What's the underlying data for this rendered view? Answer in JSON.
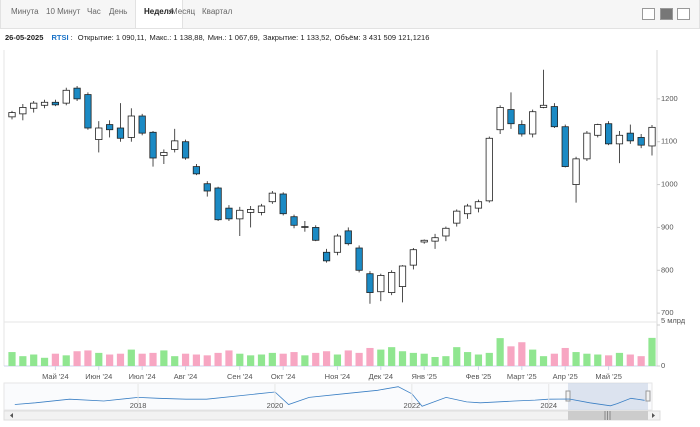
{
  "tabs": [
    "Минута",
    "10 Минут",
    "Час",
    "День",
    "Неделя",
    "Месяц",
    "Квартал"
  ],
  "active_tab": 4,
  "info": {
    "date": "26-05-2025",
    "ticker": "RTSI",
    "separator": ":",
    "fields": [
      "Открытие: 1 090,11,",
      "Макс.: 1 138,88,",
      "Мин.: 1 067,69,",
      "Закрытие: 1 133,52,",
      "Объём: 3 431 509 121,1216"
    ]
  },
  "chart_data": {
    "type": "candlestick",
    "categories": [
      null,
      null,
      null,
      null,
      "Май '24",
      null,
      null,
      null,
      "Июн '24",
      null,
      null,
      null,
      "Июл '24",
      null,
      null,
      null,
      "Авг '24",
      null,
      null,
      null,
      null,
      "Сен '24",
      null,
      null,
      null,
      "Окт '24",
      null,
      null,
      null,
      null,
      "Ноя '24",
      null,
      null,
      null,
      "Дек '24",
      null,
      null,
      null,
      "Янв '25",
      null,
      null,
      null,
      null,
      "Фев '25",
      null,
      null,
      null,
      "Март '25",
      null,
      null,
      null,
      "Апр '25",
      null,
      null,
      null,
      "Май '25",
      null,
      null,
      null,
      null
    ],
    "open": [
      1158,
      1165,
      1178,
      1185,
      1192,
      1190,
      1225,
      1210,
      1105,
      1140,
      1132,
      1110,
      1160,
      1122,
      1068,
      1082,
      1100,
      1042,
      1002,
      992,
      945,
      920,
      935,
      935,
      960,
      978,
      925,
      900,
      900,
      842,
      842,
      892,
      852,
      792,
      750,
      748,
      762,
      812,
      866,
      868,
      880,
      910,
      932,
      945,
      962,
      1128,
      1175,
      1140,
      1118,
      1180,
      1182,
      1135,
      1000,
      1060,
      1115,
      1142,
      1095,
      1120,
      1110,
      1090.11
    ],
    "high": [
      1172,
      1188,
      1195,
      1198,
      1198,
      1226,
      1230,
      1215,
      1148,
      1150,
      1190,
      1178,
      1165,
      1125,
      1082,
      1130,
      1105,
      1048,
      1008,
      995,
      952,
      948,
      950,
      955,
      985,
      982,
      930,
      915,
      905,
      850,
      885,
      900,
      858,
      798,
      792,
      800,
      812,
      852,
      872,
      885,
      902,
      942,
      955,
      965,
      1112,
      1185,
      1215,
      1150,
      1175,
      1268,
      1190,
      1140,
      1065,
      1125,
      1142,
      1148,
      1125,
      1140,
      1118,
      1138.88
    ],
    "low": [
      1152,
      1150,
      1168,
      1178,
      1183,
      1185,
      1195,
      1128,
      1075,
      1110,
      1100,
      1100,
      1115,
      1042,
      1048,
      1075,
      1058,
      1022,
      972,
      915,
      915,
      880,
      900,
      928,
      955,
      928,
      898,
      890,
      868,
      818,
      835,
      858,
      795,
      722,
      728,
      742,
      725,
      802,
      862,
      850,
      868,
      902,
      920,
      935,
      958,
      1118,
      1130,
      1112,
      1110,
      1178,
      1132,
      1040,
      958,
      1055,
      1110,
      1092,
      1050,
      1095,
      1085,
      1067.69
    ],
    "close": [
      1168,
      1180,
      1190,
      1192,
      1186,
      1220,
      1200,
      1132,
      1132,
      1128,
      1108,
      1160,
      1120,
      1062,
      1075,
      1102,
      1062,
      1025,
      985,
      918,
      920,
      940,
      942,
      950,
      980,
      932,
      905,
      902,
      870,
      822,
      880,
      862,
      800,
      748,
      788,
      795,
      810,
      848,
      870,
      876,
      898,
      938,
      950,
      960,
      1108,
      1180,
      1142,
      1118,
      1170,
      1185,
      1135,
      1042,
      1060,
      1120,
      1140,
      1095,
      1115,
      1102,
      1092,
      1133.52
    ],
    "volume": [
      1.7,
      1.2,
      1.4,
      1.0,
      1.5,
      1.3,
      1.8,
      1.9,
      1.6,
      1.4,
      1.5,
      2.0,
      1.5,
      1.6,
      1.9,
      1.2,
      1.5,
      1.4,
      1.3,
      1.6,
      1.9,
      1.5,
      1.3,
      1.4,
      1.6,
      1.5,
      1.7,
      1.3,
      1.6,
      1.8,
      1.4,
      1.9,
      1.6,
      2.2,
      2.0,
      2.3,
      1.8,
      1.6,
      1.5,
      1.1,
      1.2,
      2.3,
      1.7,
      1.4,
      1.6,
      3.4,
      2.4,
      2.9,
      2.0,
      1.2,
      1.5,
      2.2,
      1.7,
      1.5,
      1.4,
      1.3,
      1.6,
      1.4,
      1.2,
      3.43
    ],
    "up_color": "#ffffff",
    "down_color": "#1b8ac4",
    "volume_up_color": "#90e690",
    "volume_down_color": "#f7a6c2",
    "ylim": [
      684,
      1314
    ],
    "yticks": [
      700,
      800,
      900,
      1000,
      1100,
      1200
    ],
    "volume_ylim": [
      0,
      5
    ],
    "volume_ticks": [
      0,
      {
        "value": 5,
        "label": "5 млрд"
      }
    ],
    "grid": false,
    "navigator": {
      "x": [
        2016.2,
        2016.5,
        2017,
        2017.5,
        2018,
        2018.3,
        2018.7,
        2019,
        2019.5,
        2020,
        2020.2,
        2020.5,
        2021,
        2021.5,
        2021.8,
        2022,
        2022.15,
        2022.5,
        2022.8,
        2023,
        2023.5,
        2023.8,
        2024,
        2024.3,
        2024.6,
        2024.9,
        2025,
        2025.2,
        2025.4
      ],
      "values": [
        850,
        950,
        1150,
        1050,
        1250,
        1200,
        1150,
        1150,
        1350,
        1550,
        850,
        1250,
        1450,
        1650,
        1850,
        1450,
        750,
        1250,
        1000,
        950,
        1050,
        1100,
        1150,
        1160,
        950,
        780,
        900,
        1200,
        1090
      ],
      "xlim": [
        2016.1,
        2025.45
      ],
      "ylim": [
        600,
        2000
      ],
      "xticks": [
        2018,
        2020,
        2022,
        2024
      ],
      "color": "#3a7fc4"
    }
  }
}
